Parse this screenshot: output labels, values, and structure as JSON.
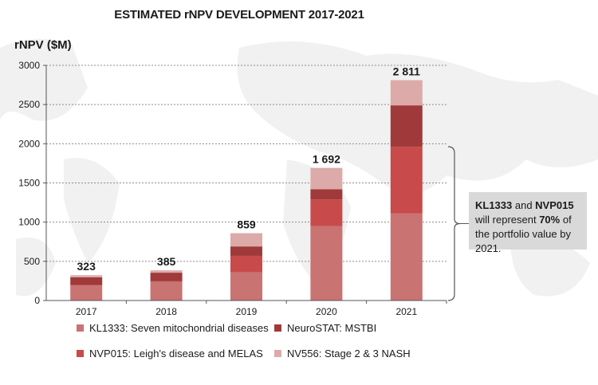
{
  "chart_data": {
    "type": "bar",
    "stacked": true,
    "title": "ESTIMATED rNPV DEVELOPMENT 2017-2021",
    "ylabel": "rNPV ($M)",
    "xlabel": "",
    "ylim": [
      0,
      3000
    ],
    "yticks": [
      0,
      500,
      1000,
      1500,
      2000,
      2500,
      3000
    ],
    "grid": true,
    "categories": [
      "2017",
      "2018",
      "2019",
      "2020",
      "2021"
    ],
    "series": [
      {
        "name": "KL1333: Seven mitochondrial diseases",
        "color": "#c97373",
        "values": [
          190,
          240,
          360,
          950,
          1110
        ]
      },
      {
        "name": "NVP015: Leigh's disease and MELAS",
        "color": "#c84a4a",
        "values": [
          5,
          5,
          210,
          340,
          850
        ]
      },
      {
        "name": "NeuroSTAT: MSTBI",
        "color": "#a03a3a",
        "values": [
          100,
          110,
          120,
          130,
          530
        ]
      },
      {
        "name": "NV556: Stage 2 & 3 NASH",
        "color": "#ddaaaa",
        "values": [
          28,
          30,
          169,
          272,
          321
        ]
      }
    ],
    "totals": [
      "323",
      "385",
      "859",
      "1 692",
      "2 811"
    ],
    "legend_position": "bottom",
    "annotation": {
      "parts": [
        {
          "text": "KL1333",
          "bold": true
        },
        {
          "text": " and ",
          "bold": false
        },
        {
          "text": "NVP015",
          "bold": true
        },
        {
          "text": " will represent ",
          "bold": false
        },
        {
          "text": "70%",
          "bold": true
        },
        {
          "text": " of the portfolio value by 2021.",
          "bold": false
        }
      ],
      "bracket_range": [
        0,
        1963
      ],
      "box_color": "#d9d9d9"
    }
  }
}
